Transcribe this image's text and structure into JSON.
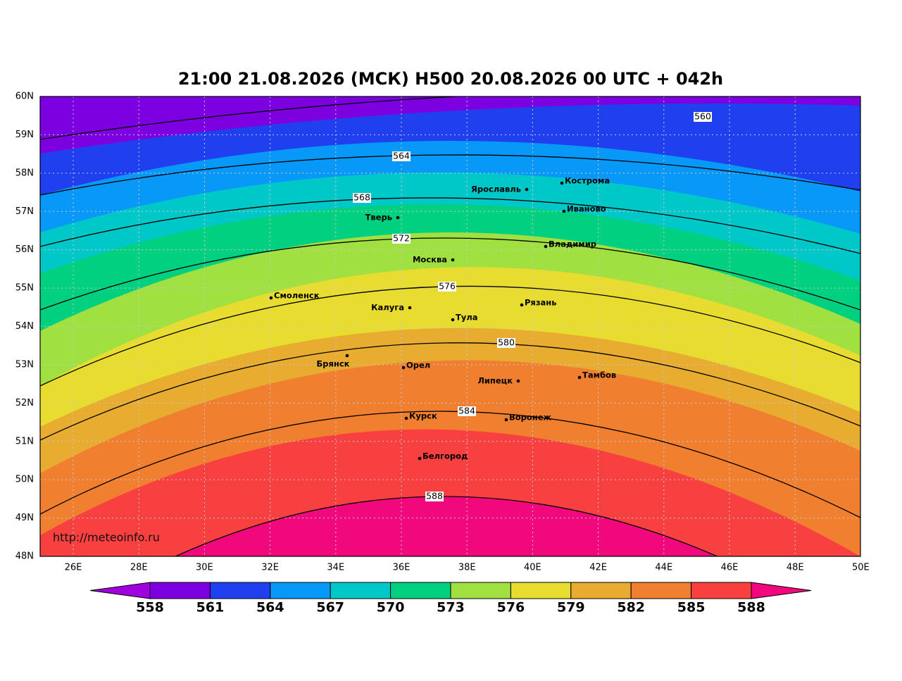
{
  "header": {
    "title": "21:00 21.08.2026 (МСК) H500  20.08.2026 00 UTC + 042h"
  },
  "map": {
    "lat_labels": [
      "60N",
      "59N",
      "58N",
      "57N",
      "56N",
      "55N",
      "54N",
      "53N",
      "52N",
      "51N",
      "50N",
      "49N",
      "48N"
    ],
    "lon_labels": [
      "26E",
      "28E",
      "30E",
      "32E",
      "34E",
      "36E",
      "38E",
      "40E",
      "42E",
      "44E",
      "46E",
      "48E",
      "50E"
    ],
    "cities": [
      "Кострома",
      "Ярославль",
      "Иваново",
      "Тверь",
      "Владимир",
      "Москва",
      "Смоленск",
      "Рязань",
      "Калуга",
      "Тула",
      "Брянск",
      "Орел",
      "Липецк",
      "Тамбов",
      "Курск",
      "Воронеж",
      "Белгород"
    ],
    "contour_labels": [
      "560",
      "564",
      "568",
      "572",
      "576",
      "580",
      "584",
      "588"
    ],
    "watermark": "http://meteoinfo.ru"
  },
  "colorbar": {
    "labels": [
      "558",
      "561",
      "564",
      "567",
      "570",
      "573",
      "576",
      "579",
      "582",
      "585",
      "588"
    ]
  }
}
